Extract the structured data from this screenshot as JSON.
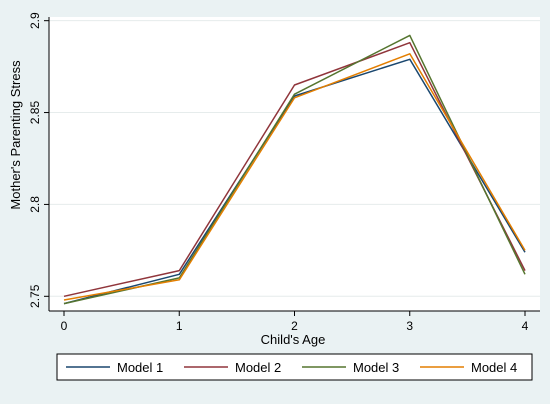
{
  "chart_data": {
    "type": "line",
    "x": [
      0,
      1,
      2,
      3,
      4
    ],
    "xticks": [
      "0",
      "1",
      "2",
      "3",
      "4"
    ],
    "yticks": [
      "2.75",
      "2.8",
      "2.85",
      "2.9"
    ],
    "ytick_values": [
      2.75,
      2.8,
      2.85,
      2.9
    ],
    "xlabel": "Child's Age",
    "ylabel": "Mother's Parenting Stress",
    "xlim": [
      0,
      4
    ],
    "ylim": [
      2.742,
      2.902
    ],
    "grid": true,
    "legend_position": "bottom",
    "series": [
      {
        "name": "Model 1",
        "color": "#1a476f",
        "values": [
          2.746,
          2.762,
          2.859,
          2.879,
          2.774
        ]
      },
      {
        "name": "Model 2",
        "color": "#90353b",
        "values": [
          2.75,
          2.764,
          2.865,
          2.888,
          2.764
        ]
      },
      {
        "name": "Model 3",
        "color": "#55752f",
        "values": [
          2.746,
          2.76,
          2.86,
          2.892,
          2.762
        ]
      },
      {
        "name": "Model 4",
        "color": "#e37e00",
        "values": [
          2.748,
          2.759,
          2.858,
          2.882,
          2.775
        ]
      }
    ]
  }
}
